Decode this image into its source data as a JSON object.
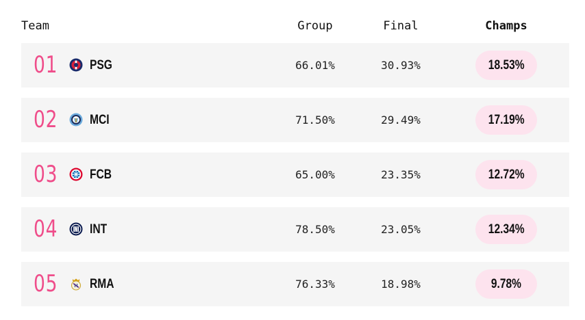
{
  "header": {
    "team": "Team",
    "group": "Group",
    "final": "Final",
    "champs": "Champs"
  },
  "rows": [
    {
      "rank": "01",
      "team": "PSG",
      "crest": "psg-crest-icon",
      "group": "66.01%",
      "final": "30.93%",
      "champs": "18.53%"
    },
    {
      "rank": "02",
      "team": "MCI",
      "crest": "mci-crest-icon",
      "group": "71.50%",
      "final": "29.49%",
      "champs": "17.19%"
    },
    {
      "rank": "03",
      "team": "FCB",
      "crest": "fcb-crest-icon",
      "group": "65.00%",
      "final": "23.35%",
      "champs": "12.72%"
    },
    {
      "rank": "04",
      "team": "INT",
      "crest": "int-crest-icon",
      "group": "78.50%",
      "final": "23.05%",
      "champs": "12.34%"
    },
    {
      "rank": "05",
      "team": "RMA",
      "crest": "rma-crest-icon",
      "group": "76.33%",
      "final": "18.98%",
      "champs": "9.78%"
    }
  ],
  "colors": {
    "rank": "#ef4d8a",
    "pill_bg": "#fde3ee",
    "row_bg": "#f5f5f5"
  }
}
